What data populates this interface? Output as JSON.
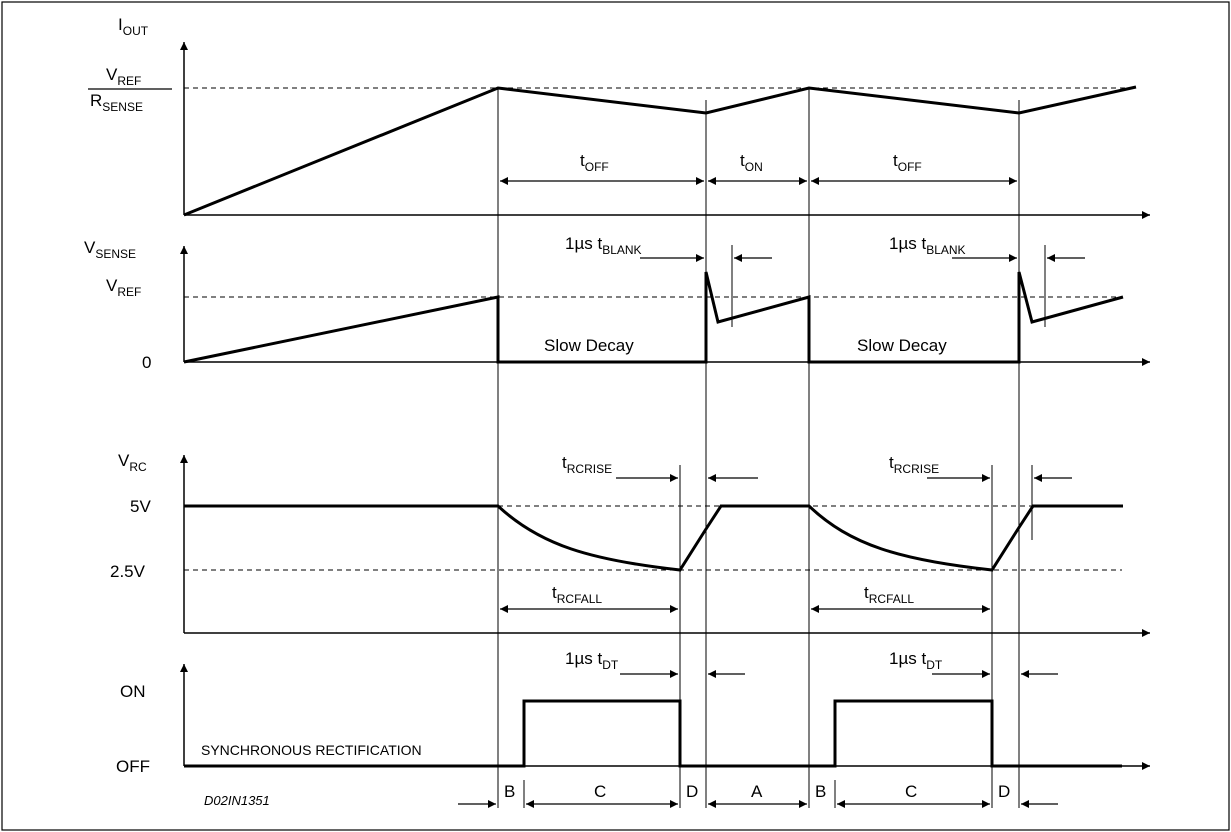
{
  "figure_code": "D02IN1351",
  "panels": {
    "iout": {
      "ylabel": {
        "main": "I",
        "sub": "OUT"
      },
      "level_numerator": {
        "main": "V",
        "sub": "REF"
      },
      "level_denominator": {
        "main": "R",
        "sub": "SENSE"
      },
      "intervals": [
        {
          "main": "t",
          "sub": "OFF"
        },
        {
          "main": "t",
          "sub": "ON"
        },
        {
          "main": "t",
          "sub": "OFF"
        }
      ]
    },
    "vsense": {
      "ylabel": {
        "main": "V",
        "sub": "SENSE"
      },
      "level_vref": {
        "main": "V",
        "sub": "REF"
      },
      "level_zero": "0",
      "blank_prefix": "1µs t",
      "blank_sub": "BLANK",
      "decay_label": "Slow Decay"
    },
    "vrc": {
      "ylabel": {
        "main": "V",
        "sub": "RC"
      },
      "level_high": "5V",
      "level_low": "2.5V",
      "rise_main": "t",
      "rise_sub": "RCRISE",
      "fall_main": "t",
      "fall_sub": "RCFALL"
    },
    "sync": {
      "level_on": "ON",
      "level_off": "OFF",
      "rectification_label": "SYNCHRONOUS RECTIFICATION",
      "deadtime_prefix": "1µs t",
      "deadtime_sub": "DT"
    }
  },
  "phases": [
    "B",
    "C",
    "D",
    "A",
    "B",
    "C",
    "D"
  ]
}
